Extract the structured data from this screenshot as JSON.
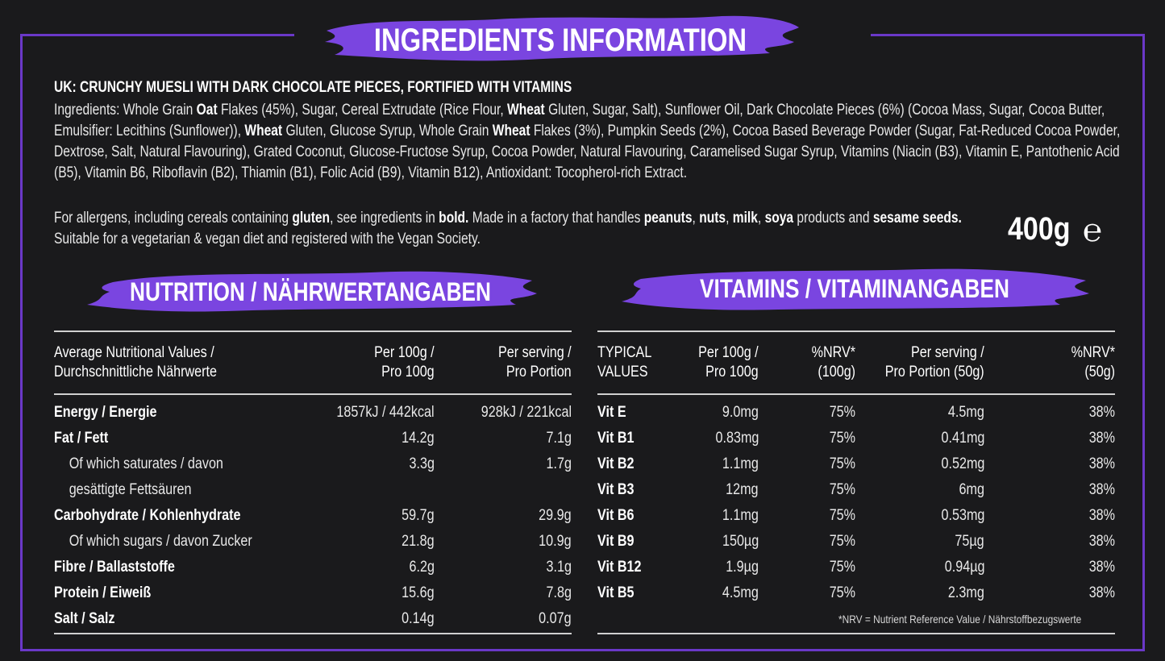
{
  "header": {
    "title": "INGREDIENTS INFORMATION"
  },
  "product": {
    "name": "UK: CRUNCHY MUESLI WITH DARK CHOCOLATE PIECES, FORTIFIED WITH VITAMINS",
    "ingredients_html": "Ingredients: Whole Grain <b>Oat</b> Flakes (45%), Sugar, Cereal Extrudate (Rice Flour, <b>Wheat</b> Gluten, Sugar, Salt), Sunflower Oil, Dark Chocolate Pieces (6%) (Cocoa Mass, Sugar, Cocoa Butter, Emulsifier: Lecithins (Sunflower)), <b>Wheat</b> Gluten, Glucose Syrup, Whole Grain <b>Wheat</b> Flakes (3%), Pumpkin Seeds (2%), Cocoa Based Beverage Powder (Sugar, Fat-Reduced Cocoa Powder, Dextrose, Salt, Natural Flavouring), Grated Coconut, Glucose-Fructose Syrup, Cocoa Powder, Natural Flavouring, Caramelised Sugar Syrup, Vitamins (Niacin (B3), Vitamin E, Pantothenic Acid (B5), Vitamin B6, Riboflavin (B2), Thiamin (B1), Folic Acid (B9), Vitamin B12), Antioxidant: Tocopherol-rich Extract.",
    "allergens_html": "For allergens, including cereals containing <b>gluten</b>, see ingredients in <b>bold.</b> Made in a factory that handles <b>peanuts</b>, <b>nuts</b>, <b>milk</b>, <b>soya</b> products and <b>sesame seeds.</b> Suitable for a vegetarian &amp; vegan diet and registered with the Vegan Society.",
    "weight": "400g",
    "estimated_mark": "℮"
  },
  "nutrition": {
    "heading": "NUTRITION / NÄHRWERTANGABEN",
    "headers": [
      "Average Nutritional Values /\nDurchschnittliche Nährwerte",
      "Per 100g /\nPro 100g",
      "Per serving /\nPro Portion"
    ],
    "rows": [
      {
        "label": "Energy / Energie",
        "per100": "1857kJ / 442kcal",
        "serving": "928kJ / 221kcal",
        "bold": true
      },
      {
        "label": "Fat / Fett",
        "per100": "14.2g",
        "serving": "7.1g",
        "bold": true
      },
      {
        "label": "Of which saturates / davon",
        "per100": "3.3g",
        "serving": "1.7g",
        "bold": false,
        "indent": true
      },
      {
        "label": "gesättigte Fettsäuren",
        "per100": "",
        "serving": "",
        "bold": false,
        "indent": true
      },
      {
        "label": "Carbohydrate / Kohlenhydrate",
        "per100": "59.7g",
        "serving": "29.9g",
        "bold": true
      },
      {
        "label": "Of which sugars / davon Zucker",
        "per100": "21.8g",
        "serving": "10.9g",
        "bold": false,
        "indent": true
      },
      {
        "label": "Fibre / Ballaststoffe",
        "per100": "6.2g",
        "serving": "3.1g",
        "bold": true
      },
      {
        "label": "Protein / Eiweiß",
        "per100": "15.6g",
        "serving": "7.8g",
        "bold": true
      },
      {
        "label": "Salt / Salz",
        "per100": "0.14g",
        "serving": "0.07g",
        "bold": true
      }
    ]
  },
  "vitamins": {
    "heading": "VITAMINS / VITAMINANGABEN",
    "headers": [
      "TYPICAL\nVALUES",
      "Per 100g /\nPro 100g",
      "%NRV*\n(100g)",
      "Per serving /\nPro Portion (50g)",
      "%NRV*\n(50g)"
    ],
    "rows": [
      {
        "name": "Vit E",
        "per100": "9.0mg",
        "nrv100": "75%",
        "serving": "4.5mg",
        "nrv50": "38%"
      },
      {
        "name": "Vit B1",
        "per100": "0.83mg",
        "nrv100": "75%",
        "serving": "0.41mg",
        "nrv50": "38%"
      },
      {
        "name": "Vit B2",
        "per100": "1.1mg",
        "nrv100": "75%",
        "serving": "0.52mg",
        "nrv50": "38%"
      },
      {
        "name": "Vit B3",
        "per100": "12mg",
        "nrv100": "75%",
        "serving": "6mg",
        "nrv50": "38%"
      },
      {
        "name": "Vit B6",
        "per100": "1.1mg",
        "nrv100": "75%",
        "serving": "0.53mg",
        "nrv50": "38%"
      },
      {
        "name": "Vit B9",
        "per100": "150µg",
        "nrv100": "75%",
        "serving": "75µg",
        "nrv50": "38%"
      },
      {
        "name": "Vit B12",
        "per100": "1.9µg",
        "nrv100": "75%",
        "serving": "0.94µg",
        "nrv50": "38%"
      },
      {
        "name": "Vit B5",
        "per100": "4.5mg",
        "nrv100": "75%",
        "serving": "2.3mg",
        "nrv50": "38%"
      }
    ],
    "footnote": "*NRV = Nutrient Reference Value / Nährstoffbezugswerte"
  },
  "colors": {
    "background": "#1a1a1c",
    "accent": "#7a45e0",
    "frame": "#6a38c8"
  }
}
